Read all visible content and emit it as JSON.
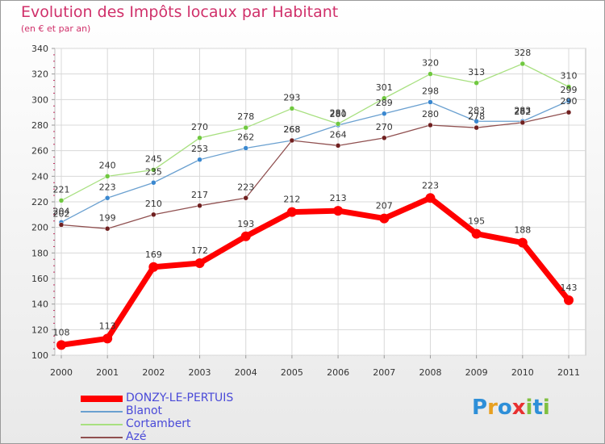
{
  "header": {
    "title": "Evolution des Impôts locaux par Habitant",
    "subtitle": "(en € et par an)"
  },
  "logo": {
    "text": "Proxiti",
    "colors": [
      "#2e8fd8",
      "#e8a020",
      "#2e8fd8",
      "#e83030",
      "#80c040",
      "#2e8fd8",
      "#80c040"
    ]
  },
  "chart_data": {
    "type": "line",
    "x": [
      "2000",
      "2001",
      "2002",
      "2003",
      "2004",
      "2005",
      "2006",
      "2007",
      "2008",
      "2009",
      "2010",
      "2011"
    ],
    "ylim": [
      100,
      340
    ],
    "yticks": [
      100,
      120,
      140,
      160,
      180,
      200,
      220,
      240,
      260,
      280,
      300,
      320,
      340
    ],
    "grid": true,
    "legend_position": "bottom-left",
    "series": [
      {
        "name": "DONZY-LE-PERTUIS",
        "color": "#ff0000",
        "marker_color": "#ff0000",
        "highlight": true,
        "values": [
          108,
          113,
          169,
          172,
          193,
          212,
          213,
          207,
          223,
          195,
          188,
          143
        ]
      },
      {
        "name": "Blanot",
        "color": "#6aa0d0",
        "marker_color": "#3a88d0",
        "values": [
          204,
          223,
          235,
          253,
          262,
          268,
          280,
          289,
          298,
          283,
          283,
          299
        ]
      },
      {
        "name": "Cortambert",
        "color": "#a8e080",
        "marker_color": "#70c840",
        "values": [
          221,
          240,
          245,
          270,
          278,
          293,
          281,
          301,
          320,
          313,
          328,
          310
        ]
      },
      {
        "name": "Azé",
        "color": "#905050",
        "marker_color": "#702020",
        "values": [
          202,
          199,
          210,
          217,
          223,
          268,
          264,
          270,
          280,
          278,
          282,
          290
        ]
      }
    ],
    "data_labels": {
      "DONZY-LE-PERTUIS": [
        "108",
        "113",
        "169",
        "172",
        "193",
        "212",
        "213",
        "207",
        "223",
        "195",
        "188",
        "143"
      ],
      "Blanot": [
        "204",
        "223",
        "235",
        "253",
        "262",
        "268",
        "280",
        "289",
        "298",
        "283",
        "283",
        "299"
      ],
      "Cortambert": [
        "221",
        "240",
        "245",
        "270",
        "278",
        "293",
        "281",
        "301",
        "320",
        "313",
        "328",
        "310"
      ],
      "Azé": [
        "202",
        "199",
        "210",
        "217",
        "223",
        "268",
        "264",
        "270",
        "280",
        "278",
        "282",
        "290"
      ]
    }
  }
}
